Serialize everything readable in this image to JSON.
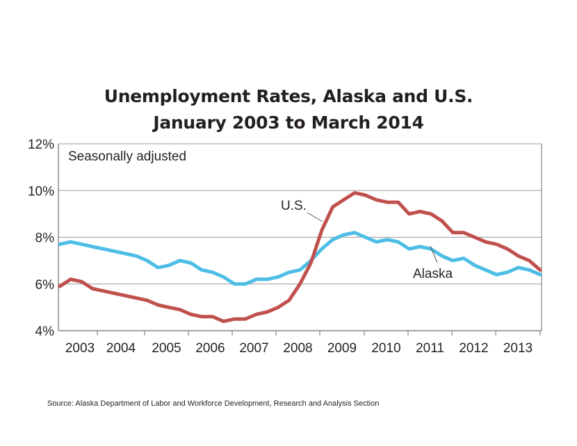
{
  "chart_data": {
    "type": "line",
    "title": "Unemployment Rates, Alaska and U.S.",
    "subtitle": "January 2003 to March 2014",
    "annotation": "Seasonally adjusted",
    "xlabel": "",
    "ylabel": "",
    "ylim": [
      4,
      12
    ],
    "y_ticks": [
      "4%",
      "6%",
      "8%",
      "10%",
      "12%"
    ],
    "y_tick_values": [
      4,
      6,
      8,
      10,
      12
    ],
    "x_tick_labels": [
      "2003",
      "2004",
      "2005",
      "2006",
      "2007",
      "2008",
      "2009",
      "2010",
      "2011",
      "2012",
      "2013"
    ],
    "grid": {
      "horizontal": true,
      "vertical": false
    },
    "legend": "inline labels",
    "x_start": "2003-01",
    "x_end": "2014-03",
    "frequency": "monthly (sampled quarterly)",
    "x": [
      "2003Q1",
      "2003Q2",
      "2003Q3",
      "2003Q4",
      "2004Q1",
      "2004Q2",
      "2004Q3",
      "2004Q4",
      "2005Q1",
      "2005Q2",
      "2005Q3",
      "2005Q4",
      "2006Q1",
      "2006Q2",
      "2006Q3",
      "2006Q4",
      "2007Q1",
      "2007Q2",
      "2007Q3",
      "2007Q4",
      "2008Q1",
      "2008Q2",
      "2008Q3",
      "2008Q4",
      "2009Q1",
      "2009Q2",
      "2009Q3",
      "2009Q4",
      "2010Q1",
      "2010Q2",
      "2010Q3",
      "2010Q4",
      "2011Q1",
      "2011Q2",
      "2011Q3",
      "2011Q4",
      "2012Q1",
      "2012Q2",
      "2012Q3",
      "2012Q4",
      "2013Q1",
      "2013Q2",
      "2013Q3",
      "2013Q4",
      "2014Q1"
    ],
    "series": [
      {
        "name": "U.S.",
        "color": "#c0504d",
        "values": [
          5.9,
          6.2,
          6.1,
          5.8,
          5.7,
          5.6,
          5.5,
          5.4,
          5.3,
          5.1,
          5.0,
          4.9,
          4.7,
          4.6,
          4.6,
          4.4,
          4.5,
          4.5,
          4.7,
          4.8,
          5.0,
          5.3,
          6.0,
          6.9,
          8.3,
          9.3,
          9.6,
          9.9,
          9.8,
          9.6,
          9.5,
          9.5,
          9.0,
          9.1,
          9.0,
          8.7,
          8.2,
          8.2,
          8.0,
          7.8,
          7.7,
          7.5,
          7.2,
          7.0,
          6.6
        ]
      },
      {
        "name": "Alaska",
        "color": "#4dbde6",
        "values": [
          7.7,
          7.8,
          7.7,
          7.6,
          7.5,
          7.4,
          7.3,
          7.2,
          7.0,
          6.7,
          6.8,
          7.0,
          6.9,
          6.6,
          6.5,
          6.3,
          6.0,
          6.0,
          6.2,
          6.2,
          6.3,
          6.5,
          6.6,
          7.0,
          7.5,
          7.9,
          8.1,
          8.2,
          8.0,
          7.8,
          7.9,
          7.8,
          7.5,
          7.6,
          7.5,
          7.2,
          7.0,
          7.1,
          6.8,
          6.6,
          6.4,
          6.5,
          6.7,
          6.6,
          6.4
        ]
      }
    ],
    "labels": [
      {
        "text": "U.S.",
        "series": "U.S."
      },
      {
        "text": "Alaska",
        "series": "Alaska"
      }
    ]
  },
  "header": {
    "title_line1": "Unemployment Rates, Alaska and U.S.",
    "title_line2": "January 2003 to March 2014"
  },
  "footer": {
    "source": "Source: Alaska Department of Labor and Workforce Development, Research and Analysis Section"
  },
  "colors": {
    "us_line": "#c0504d",
    "alaska_line": "#4dbde6",
    "gridline": "#9a9a9a",
    "axis": "#6d6d6d",
    "text": "#231f20"
  }
}
